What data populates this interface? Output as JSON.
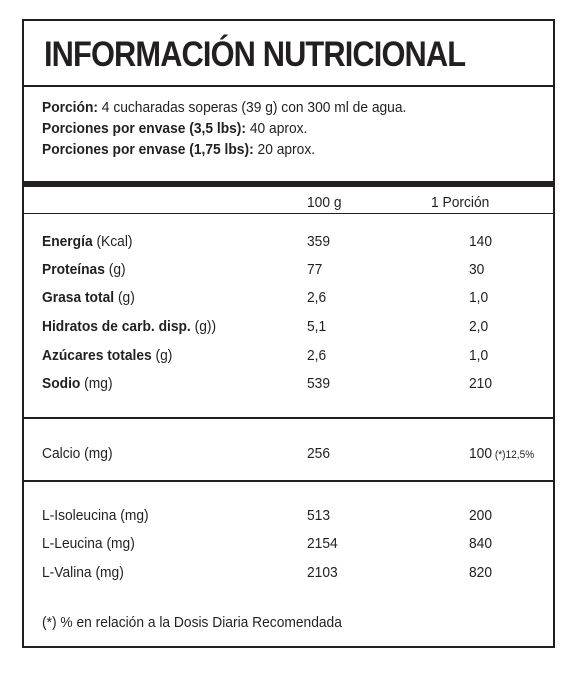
{
  "title": "INFORMACIÓN NUTRICIONAL",
  "serving": {
    "portion_label": "Porción:",
    "portion_value": " 4 cucharadas soperas (39 g) con 300 ml de agua.",
    "per_container_35_label": "Porciones por envase (3,5 lbs):",
    "per_container_35_value": " 40 aprox.",
    "per_container_175_label": "Porciones por envase (1,75 lbs):",
    "per_container_175_value": " 20 aprox."
  },
  "columns": {
    "per100": "100 g",
    "perPortion": "1 Porción"
  },
  "nutrients": [
    {
      "name": "Energía",
      "unit": " (Kcal)",
      "per100": "359",
      "perPortion": "140"
    },
    {
      "name": "Proteínas",
      "unit": " (g)",
      "per100": "77",
      "perPortion": "30"
    },
    {
      "name": "Grasa total",
      "unit": " (g)",
      "per100": "2,6",
      "perPortion": "1,0"
    },
    {
      "name": "Hidratos de carb. disp.",
      "unit": " (g))",
      "per100": "5,1",
      "perPortion": "2,0"
    },
    {
      "name": "Azúcares totales",
      "unit": " (g)",
      "per100": "2,6",
      "perPortion": "1,0"
    },
    {
      "name": "Sodio",
      "unit": " (mg)",
      "per100": "539",
      "perPortion": "210"
    }
  ],
  "minerals": [
    {
      "name": "Calcio (mg)",
      "per100": "256",
      "perPortion": "100",
      "note": " (*)12,5%"
    }
  ],
  "aminoacids": [
    {
      "name": "L-Isoleucina (mg)",
      "per100": "513",
      "perPortion": "200"
    },
    {
      "name": "L-Leucina (mg)",
      "per100": "2154",
      "perPortion": "840"
    },
    {
      "name": "L-Valina (mg)",
      "per100": "2103",
      "perPortion": "820"
    }
  ],
  "footnote": "(*) % en relación a la Dosis Diaria Recomendada"
}
